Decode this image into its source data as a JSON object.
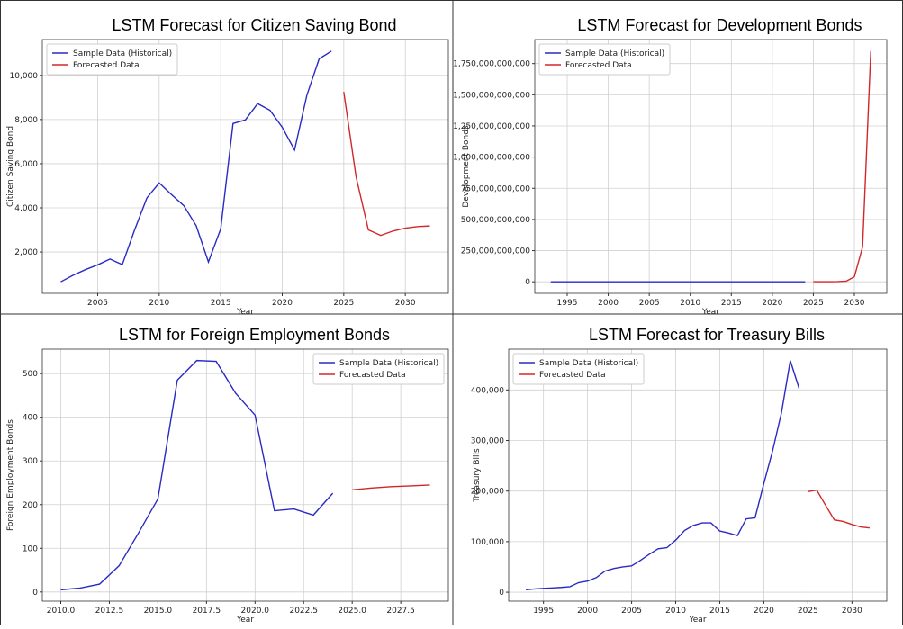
{
  "chart_data": [
    {
      "type": "line",
      "title": "LSTM Forecast for Citizen Saving Bond",
      "xlabel": "Year",
      "ylabel": "Citizen Saving Bond",
      "xlim": [
        2000.5,
        2033.5
      ],
      "xticks": [
        2005,
        2010,
        2015,
        2020,
        2025,
        2030
      ],
      "ylim": [
        128,
        11622
      ],
      "yticks": [
        {
          "value": 2000,
          "label": "2,000"
        },
        {
          "value": 4000,
          "label": "4,000"
        },
        {
          "value": 6000,
          "label": "6,000"
        },
        {
          "value": 8000,
          "label": "8,000"
        },
        {
          "value": 10000,
          "label": "10,000"
        }
      ],
      "grid": true,
      "legend": "upper left",
      "series": [
        {
          "name": "Sample Data (Historical)",
          "color": "#2a2ac4",
          "x": [
            2002,
            2003,
            2004,
            2005,
            2006,
            2007,
            2008,
            2009,
            2010,
            2011,
            2012,
            2013,
            2014,
            2015,
            2016,
            2017,
            2018,
            2019,
            2020,
            2021,
            2022,
            2023,
            2024
          ],
          "values": [
            650,
            950,
            1200,
            1420,
            1680,
            1430,
            3000,
            4450,
            5130,
            4600,
            4100,
            3200,
            1550,
            3050,
            7820,
            7980,
            8720,
            8420,
            7650,
            6620,
            9100,
            10750,
            11100
          ]
        },
        {
          "name": "Forecasted Data",
          "color": "#d02828",
          "x": [
            2025,
            2026,
            2027,
            2028,
            2029,
            2030,
            2031,
            2032
          ],
          "values": [
            9250,
            5400,
            3000,
            2750,
            2950,
            3080,
            3150,
            3180
          ]
        }
      ]
    },
    {
      "type": "line",
      "title": "LSTM Forecast for Development Bonds",
      "xlabel": "Year",
      "ylabel": "Development Bonds",
      "xlim": [
        1991.05,
        2033.95
      ],
      "xticks": [
        1995,
        2000,
        2005,
        2010,
        2015,
        2020,
        2025,
        2030
      ],
      "ylim": [
        -92500000000,
        1942500000000
      ],
      "yticks": [
        0,
        {
          "value": 250000000000,
          "label": "250,000,000,000"
        },
        {
          "value": 500000000000,
          "label": "500,000,000,000"
        },
        {
          "value": 750000000000,
          "label": "750,000,000,000"
        },
        {
          "value": 1000000000000,
          "label": "1,000,000,000,000"
        },
        {
          "value": 1250000000000,
          "label": "1,250,000,000,000"
        },
        {
          "value": 1500000000000,
          "label": "1,500,000,000,000"
        },
        {
          "value": 1750000000000,
          "label": "1,750,000,000,000"
        }
      ],
      "grid": true,
      "legend": "upper left",
      "series": [
        {
          "name": "Sample Data (Historical)",
          "color": "#2a2ac4",
          "x": [
            1993,
            1994,
            1995,
            1996,
            1997,
            1998,
            1999,
            2000,
            2001,
            2002,
            2003,
            2004,
            2005,
            2006,
            2007,
            2008,
            2009,
            2010,
            2011,
            2012,
            2013,
            2014,
            2015,
            2016,
            2017,
            2018,
            2019,
            2020,
            2021,
            2022,
            2023,
            2024
          ],
          "values": [
            0,
            0,
            0,
            0,
            0,
            0,
            0,
            0,
            0,
            0,
            0,
            0,
            0,
            0,
            0,
            0,
            0,
            0,
            0,
            0,
            0,
            0,
            0,
            0,
            0,
            0,
            0,
            0,
            0,
            0,
            0,
            0
          ]
        },
        {
          "name": "Forecasted Data",
          "color": "#d02828",
          "x": [
            2025,
            2026,
            2027,
            2028,
            2029,
            2030,
            2031,
            2032
          ],
          "values": [
            500000000,
            700000000,
            1200000000,
            2000000000,
            5000000000,
            40000000000,
            280000000000,
            1850000000000
          ]
        }
      ]
    },
    {
      "type": "line",
      "title": "LSTM for Foreign Employment Bonds",
      "xlabel": "Year",
      "ylabel": "Foreign Employment Bonds",
      "xlim": [
        2009.05,
        2029.95
      ],
      "xticks": [
        {
          "value": 2010,
          "label": "2010.0"
        },
        {
          "value": 2012.5,
          "label": "2012.5"
        },
        {
          "value": 2015,
          "label": "2015.0"
        },
        {
          "value": 2017.5,
          "label": "2017.5"
        },
        {
          "value": 2020,
          "label": "2020.0"
        },
        {
          "value": 2022.5,
          "label": "2022.5"
        },
        {
          "value": 2025,
          "label": "2025.0"
        },
        {
          "value": 2027.5,
          "label": "2027.5"
        }
      ],
      "ylim": [
        -21,
        556
      ],
      "yticks": [
        0,
        100,
        200,
        300,
        400,
        500
      ],
      "grid": true,
      "legend": "upper right",
      "series": [
        {
          "name": "Sample Data (Historical)",
          "color": "#2a2ac4",
          "x": [
            2010,
            2011,
            2012,
            2013,
            2014,
            2015,
            2016,
            2017,
            2018,
            2019,
            2020,
            2021,
            2022,
            2023,
            2024
          ],
          "values": [
            5,
            9,
            18,
            60,
            135,
            213,
            485,
            530,
            528,
            455,
            405,
            186,
            190,
            176,
            226
          ]
        },
        {
          "name": "Forecasted Data",
          "color": "#d02828",
          "x": [
            2025,
            2026,
            2027,
            2028,
            2029
          ],
          "values": [
            234,
            238,
            241,
            243,
            245
          ]
        }
      ]
    },
    {
      "type": "line",
      "title": "LSTM Forecast for Treasury Bills",
      "xlabel": "Year",
      "ylabel": "Treasury Bills",
      "xlim": [
        1991.05,
        2033.95
      ],
      "xticks": [
        1995,
        2000,
        2005,
        2010,
        2015,
        2020,
        2025,
        2030
      ],
      "ylim": [
        -17650,
        480650
      ],
      "yticks": [
        0,
        {
          "value": 100000,
          "label": "100,000"
        },
        {
          "value": 200000,
          "label": "200,000"
        },
        {
          "value": 300000,
          "label": "300,000"
        },
        {
          "value": 400000,
          "label": "400,000"
        }
      ],
      "grid": true,
      "legend": "upper left",
      "series": [
        {
          "name": "Sample Data (Historical)",
          "color": "#2a2ac4",
          "x": [
            1993,
            1994,
            1995,
            1996,
            1997,
            1998,
            1999,
            2000,
            2001,
            2002,
            2003,
            2004,
            2005,
            2006,
            2007,
            2008,
            2009,
            2010,
            2011,
            2012,
            2013,
            2014,
            2015,
            2016,
            2017,
            2018,
            2019,
            2020,
            2021,
            2022,
            2023,
            2024
          ],
          "values": [
            5000,
            6500,
            7500,
            8500,
            9500,
            11000,
            19000,
            22000,
            29000,
            42000,
            47000,
            50000,
            52000,
            63000,
            75000,
            86000,
            88000,
            103000,
            122000,
            132000,
            137000,
            137000,
            121000,
            117000,
            112000,
            145000,
            147000,
            215000,
            280000,
            355000,
            458000,
            403000
          ]
        },
        {
          "name": "Forecasted Data",
          "color": "#d02828",
          "x": [
            2025,
            2026,
            2027,
            2028,
            2029,
            2030,
            2031,
            2032
          ],
          "values": [
            199000,
            202000,
            172000,
            143000,
            140000,
            134000,
            129000,
            127000
          ]
        }
      ]
    }
  ]
}
